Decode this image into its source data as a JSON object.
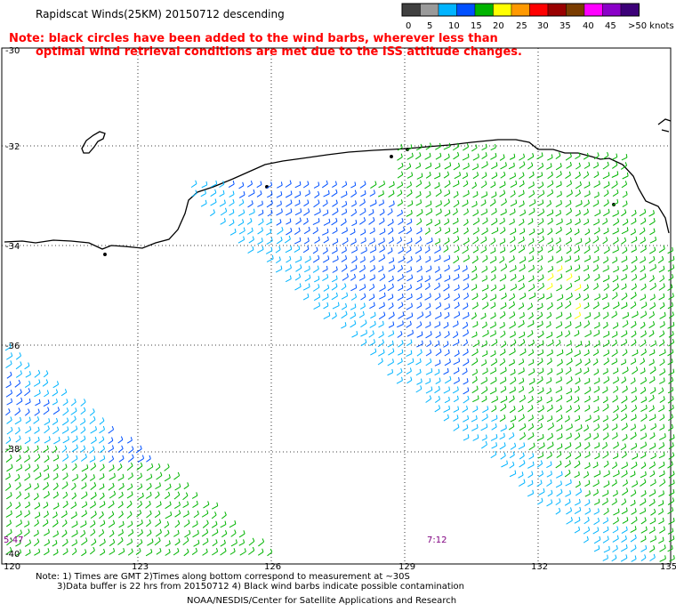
{
  "title": "Rapidscat Winds(25KM) 20150712 descending",
  "note": {
    "line1": "Note: black circles have been added to the wind barbs, wherever less than",
    "line2": "optimal wind retrieval conditions are met due to the ISS attitude changes."
  },
  "legend": {
    "labels": [
      "0",
      "5",
      "10",
      "15",
      "20",
      "25",
      "30",
      "35",
      "40",
      "45",
      ">50 knots"
    ],
    "colors": [
      "#404040",
      "#9a9a9a",
      "#00b4ff",
      "#0050ff",
      "#00b400",
      "#ffff00",
      "#ff9900",
      "#ff0000",
      "#990000",
      "#7a3c00",
      "#ff00ff",
      "#8a00c8",
      "#3c0078"
    ]
  },
  "lat_labels": [
    "-30",
    "-32",
    "-34",
    "-36",
    "-38",
    "-40"
  ],
  "lon_labels": [
    "120",
    "123",
    "126",
    "129",
    "132",
    "135"
  ],
  "pass_times": [
    "5:47",
    "7:12"
  ],
  "footer": {
    "line1": "Note: 1) Times are GMT 2)Times along bottom correspond to measurement at ~30S",
    "line2": "3)Data buffer is 22 hrs from 20150712 4) Black wind barbs indicate possible contamination",
    "line3": "NOAA/NESDIS/Center for Satellite Applications and Research"
  }
}
